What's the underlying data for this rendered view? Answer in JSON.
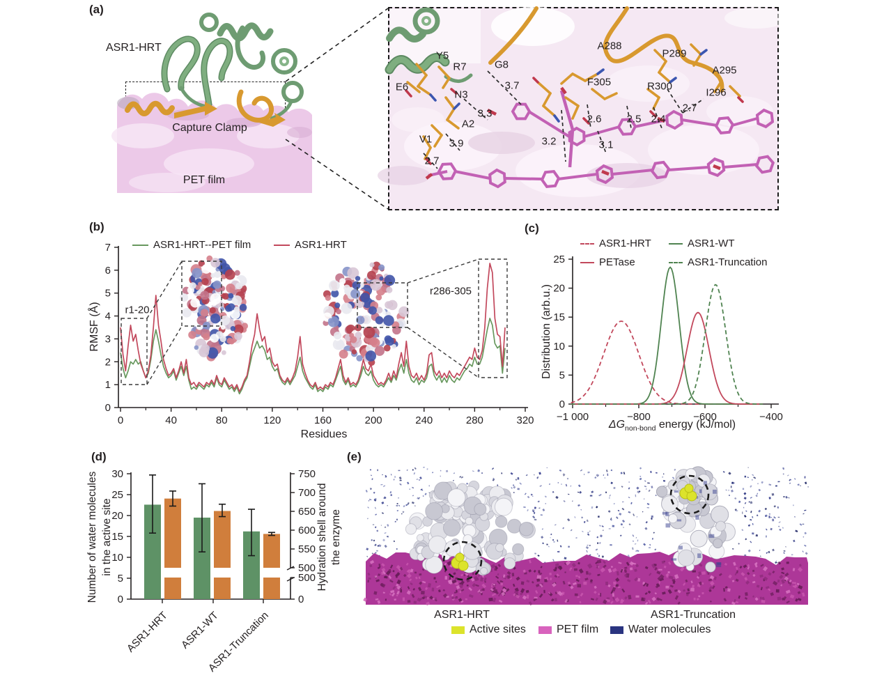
{
  "colors": {
    "text": "#231f20",
    "line_green": "#68985e",
    "line_red": "#c2485c",
    "bar_green": "#5e9266",
    "bar_orange": "#d07e3c",
    "cartoon_green": "#7fae80",
    "clamp_orange": "#d8992f",
    "surface_pink": "#ecc9e8",
    "inset_pink": "#f5e8f3",
    "stick_magenta": "#c261b4",
    "stick_red": "#c0394d",
    "stick_blue": "#3b56b0",
    "film_magenta": "#ad3798",
    "enzyme_grey": "#e6e6ea",
    "water_navy": "#2a3480",
    "active_yellow": "#dce32b"
  },
  "panel_a": {
    "tag": "(a)",
    "labels": {
      "protein": "ASR1-HRT",
      "clamp": "Capture Clamp",
      "film": "PET film"
    },
    "inset": {
      "residues": [
        "Y5",
        "E6",
        "R7",
        "G8",
        "N3",
        "A2",
        "V1",
        "F305",
        "A288",
        "P289",
        "A295",
        "R300",
        "I296"
      ],
      "distances": [
        "3.7",
        "3.3",
        "3.9",
        "2.7",
        "3.2",
        "2.6",
        "2.5",
        "2.4",
        "3.1",
        "2.7"
      ]
    }
  },
  "panel_b": {
    "tag": "(b)"
  },
  "panel_c": {
    "tag": "(c)"
  },
  "panel_d": {
    "tag": "(d)"
  },
  "panel_e": {
    "tag": "(e)",
    "captions": [
      "ASR1-HRT",
      "ASR1-Truncation"
    ],
    "legend": [
      {
        "label": "Active sites",
        "color": "#dce32b"
      },
      {
        "label": "PET film",
        "color": "#d863bd"
      },
      {
        "label": "Water molecules",
        "color": "#2a3480"
      }
    ]
  },
  "chart_data": [
    {
      "id": "rmsf",
      "type": "line",
      "title": "",
      "xlabel": "Residues",
      "ylabel": "RMSF (Å)",
      "xlim": [
        0,
        320
      ],
      "ylim": [
        0,
        7
      ],
      "xticks": [
        0,
        40,
        80,
        120,
        160,
        200,
        240,
        280,
        320
      ],
      "xticks_minor": [
        20,
        60,
        100,
        140,
        180,
        220,
        260,
        300
      ],
      "yticks": [
        0,
        1,
        2,
        3,
        4,
        5,
        6,
        7
      ],
      "grid": false,
      "legend_position": "top",
      "x_start": 0,
      "x_step": 2,
      "annotations": [
        {
          "text": "r1-20"
        },
        {
          "text": "r286-305"
        }
      ],
      "series": [
        {
          "name": "ASR1-HRT--PET film",
          "color": "#68985e",
          "style": "solid",
          "values": [
            2.4,
            1.7,
            1.3,
            1.6,
            2.0,
            1.9,
            2.1,
            1.9,
            2.0,
            1.6,
            1.3,
            1.5,
            2.1,
            2.9,
            3.4,
            2.9,
            2.3,
            1.8,
            1.5,
            1.3,
            1.4,
            1.6,
            1.2,
            1.5,
            1.8,
            1.4,
            1.8,
            1.2,
            0.8,
            0.9,
            0.8,
            1.0,
            0.9,
            0.8,
            1.0,
            0.9,
            1.1,
            0.9,
            1.3,
            1.0,
            0.9,
            1.2,
            1.0,
            0.8,
            0.9,
            0.7,
            0.9,
            0.6,
            0.8,
            1.1,
            1.3,
            1.8,
            2.3,
            2.6,
            2.9,
            2.6,
            2.7,
            2.5,
            2.1,
            2.2,
            1.8,
            1.6,
            1.7,
            1.3,
            1.1,
            1.0,
            1.2,
            1.0,
            1.2,
            1.4,
            1.8,
            2.2,
            1.6,
            1.3,
            1.1,
            0.9,
            0.8,
            1.0,
            0.7,
            0.8,
            0.7,
            0.9,
            0.8,
            1.0,
            0.9,
            1.2,
            1.5,
            1.8,
            1.2,
            1.0,
            1.2,
            0.9,
            1.0,
            0.9,
            1.1,
            1.4,
            1.8,
            1.5,
            1.4,
            1.6,
            1.2,
            1.0,
            0.9,
            1.0,
            0.9,
            1.1,
            1.3,
            1.1,
            1.4,
            1.2,
            1.6,
            1.9,
            1.5,
            2.1,
            1.5,
            1.2,
            1.1,
            1.3,
            1.0,
            1.2,
            1.1,
            1.3,
            1.8,
            1.9,
            1.4,
            1.2,
            1.4,
            1.1,
            1.3,
            1.1,
            1.4,
            1.2,
            1.1,
            1.3,
            1.2,
            1.4,
            1.6,
            1.7,
            1.9,
            1.8,
            2.2,
            1.9,
            1.9,
            2.2,
            2.8,
            3.4,
            3.9,
            3.6,
            2.8,
            2.6,
            2.7,
            1.5,
            2.6
          ]
        },
        {
          "name": "ASR1-HRT",
          "color": "#c2485c",
          "style": "solid",
          "values": [
            3.5,
            2.3,
            1.6,
            2.7,
            3.6,
            2.9,
            3.2,
            2.5,
            1.9,
            1.6,
            1.3,
            1.6,
            2.3,
            3.5,
            4.9,
            3.6,
            2.9,
            2.1,
            1.7,
            1.4,
            1.5,
            1.7,
            1.3,
            1.6,
            2.0,
            1.5,
            2.1,
            1.3,
            1.0,
            1.1,
            0.9,
            1.1,
            1.0,
            0.9,
            1.1,
            1.0,
            1.2,
            1.0,
            1.4,
            1.1,
            1.0,
            1.3,
            1.1,
            0.9,
            1.0,
            0.8,
            1.0,
            0.7,
            0.9,
            1.2,
            1.4,
            2.0,
            2.7,
            3.2,
            4.1,
            3.4,
            2.9,
            3.1,
            2.4,
            2.6,
            2.0,
            1.8,
            1.9,
            1.4,
            1.2,
            1.1,
            1.3,
            1.1,
            1.3,
            1.6,
            2.2,
            3.1,
            1.9,
            1.5,
            1.2,
            1.0,
            0.9,
            1.1,
            0.8,
            0.9,
            0.8,
            1.0,
            0.9,
            1.1,
            1.0,
            1.3,
            1.7,
            2.1,
            1.4,
            1.1,
            1.3,
            1.0,
            1.1,
            1.0,
            1.2,
            1.6,
            2.1,
            1.7,
            1.6,
            1.9,
            1.4,
            1.2,
            1.0,
            1.1,
            1.0,
            1.2,
            1.5,
            1.2,
            1.6,
            1.3,
            1.9,
            2.4,
            1.8,
            2.9,
            1.8,
            1.4,
            1.3,
            1.5,
            1.2,
            1.4,
            1.2,
            1.5,
            2.3,
            2.4,
            1.6,
            1.4,
            1.6,
            1.3,
            1.5,
            1.3,
            1.6,
            1.4,
            1.3,
            1.5,
            1.4,
            1.6,
            1.8,
            2.0,
            2.2,
            2.1,
            2.6,
            2.2,
            2.1,
            2.5,
            3.5,
            5.2,
            6.3,
            5.9,
            3.9,
            3.2,
            3.1,
            1.8,
            3.5
          ]
        }
      ]
    },
    {
      "id": "dg_distribution",
      "type": "line",
      "title": "",
      "xlabel_prefix": "ΔG",
      "xlabel_sub": "non-bond",
      "xlabel_suffix": " energy (kJ/mol)",
      "ylabel": "Distribution (arb.u.)",
      "xlim": [
        -1000,
        -400
      ],
      "ylim": [
        0,
        25
      ],
      "xticks": [
        -1000,
        -800,
        -600,
        -400
      ],
      "xtick_labels": [
        "−1 000",
        "−800",
        "−600",
        "−400"
      ],
      "xticks_minor": [
        -900,
        -700,
        -500
      ],
      "yticks": [
        0,
        5,
        10,
        15,
        20,
        25
      ],
      "grid": false,
      "legend_position": "top",
      "series": [
        {
          "name": "ASR1-HRT",
          "color": "#c2485c",
          "style": "dashed",
          "mean": -853,
          "sd": 53,
          "peak": 14.3
        },
        {
          "name": "ASR1-WT",
          "color": "#4f8350",
          "style": "solid",
          "mean": -705,
          "sd": 27,
          "peak": 23.6
        },
        {
          "name": "PETase",
          "color": "#c2485c",
          "style": "solid",
          "mean": -621,
          "sd": 33,
          "peak": 15.8
        },
        {
          "name": "ASR1-Truncation",
          "color": "#4f8350",
          "style": "dashed",
          "mean": -568,
          "sd": 31,
          "peak": 20.6
        }
      ]
    },
    {
      "id": "water_bars",
      "type": "bar",
      "categories": [
        "ASR1-HRT",
        "ASR1-WT",
        "ASR1-Truncation"
      ],
      "left_axis": {
        "label_line1": "Number of water molecules",
        "label_line2": "in the active site",
        "lim": [
          0,
          30
        ],
        "ticks": [
          0,
          5,
          10,
          15,
          20,
          25,
          30
        ]
      },
      "right_axis": {
        "label_line1": "Hydration shell around",
        "label_line2": "the enzyme",
        "upper_lim": [
          500,
          750
        ],
        "upper_ticks": [
          500,
          550,
          600,
          650,
          700,
          750
        ],
        "lower_lim": [
          0,
          500
        ],
        "lower_ticks": [
          0,
          500
        ],
        "axis_break": true
      },
      "series": [
        {
          "name": "Number of water molecules in the active site",
          "axis": "left",
          "color": "#5e9266",
          "values": [
            22.6,
            19.5,
            16.2
          ],
          "err_low": [
            15.8,
            11.3,
            10.4
          ],
          "err_high": [
            29.7,
            27.6,
            21.5
          ]
        },
        {
          "name": "Hydration shell around the enzyme",
          "axis": "right",
          "color": "#d07e3c",
          "values": [
            684,
            651,
            590
          ],
          "err_low": [
            664,
            636,
            586
          ],
          "err_high": [
            704,
            669,
            594
          ]
        }
      ]
    }
  ]
}
